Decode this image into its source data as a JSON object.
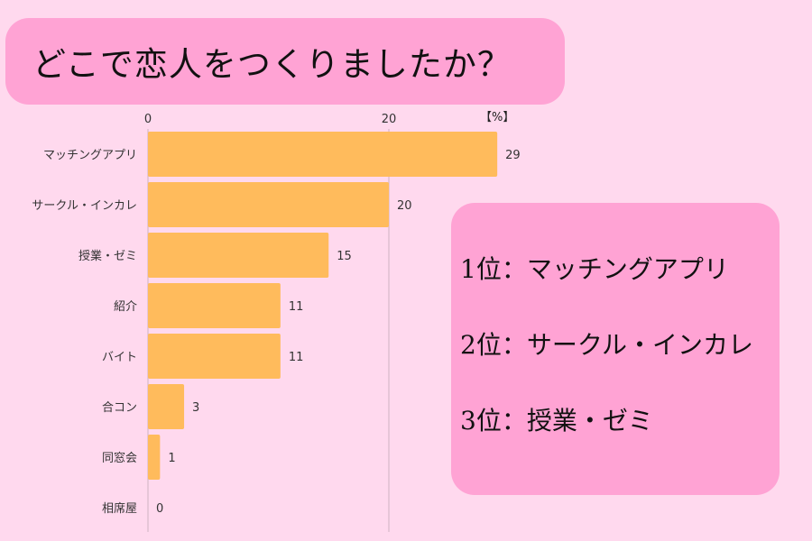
{
  "title": "どこで恋人をつくりましたか？",
  "chart_data": {
    "type": "bar",
    "orientation": "horizontal",
    "categories": [
      "マッチングアプリ",
      "サークル・インカレ",
      "授業・ゼミ",
      "紹介",
      "バイト",
      "合コン",
      "同窓会",
      "相席屋"
    ],
    "values": [
      29,
      20,
      15,
      11,
      11,
      3,
      1,
      0
    ],
    "data_labels": [
      "29",
      "20",
      "15",
      "11",
      "11",
      "3",
      "1",
      "0"
    ],
    "xticks": [
      0,
      20
    ],
    "xtick_labels": [
      "0",
      "20"
    ],
    "unit_label": "【%】",
    "xlim": [
      0,
      33
    ],
    "bar_color": "#ffbb5c",
    "grid": true
  },
  "ranking": [
    "1位：マッチングアプリ",
    "2位：サークル・インカレ",
    "3位：授業・ゼミ"
  ]
}
